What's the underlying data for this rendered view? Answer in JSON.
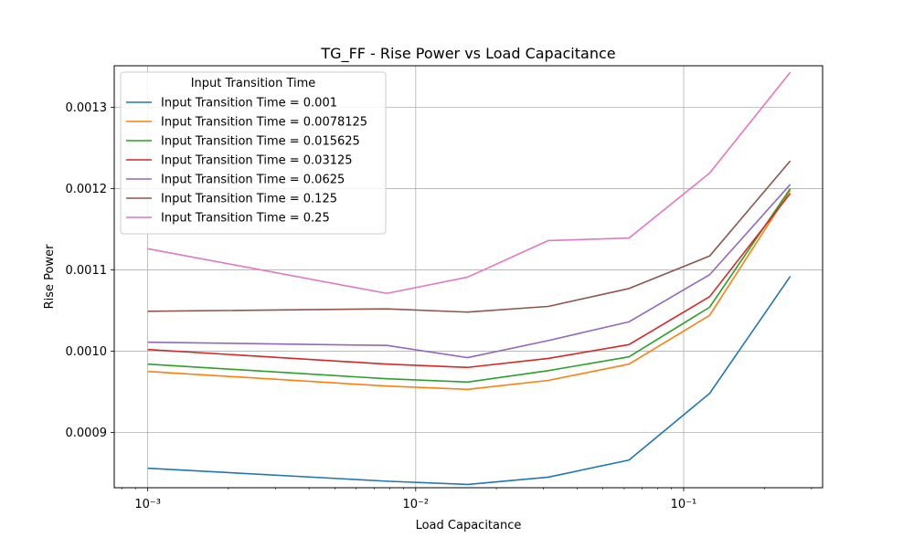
{
  "chart_data": {
    "type": "line",
    "title": "TG_FF - Rise Power vs Load Capacitance",
    "xlabel": "Load Capacitance",
    "ylabel": "Rise Power",
    "xscale": "log",
    "xlim": [
      0.00075,
      0.33
    ],
    "ylim": [
      0.000832,
      0.001351
    ],
    "x": [
      0.001,
      0.0078125,
      0.015625,
      0.03125,
      0.0625,
      0.125,
      0.25
    ],
    "x_ticks": [
      {
        "value": 0.001,
        "label": "10⁻³"
      },
      {
        "value": 0.01,
        "label": "10⁻²"
      },
      {
        "value": 0.1,
        "label": "10⁻¹"
      }
    ],
    "y_ticks": [
      {
        "value": 0.0009,
        "label": "0.0009"
      },
      {
        "value": 0.001,
        "label": "0.0010"
      },
      {
        "value": 0.0011,
        "label": "0.0011"
      },
      {
        "value": 0.0012,
        "label": "0.0012"
      },
      {
        "value": 0.0013,
        "label": "0.0013"
      }
    ],
    "grid": true,
    "legend": {
      "title": "Input Transition Time",
      "placement": "top-left"
    },
    "series": [
      {
        "name": "Input Transition Time = 0.001",
        "color": "#1f77b4",
        "values": [
          0.000856,
          0.00084,
          0.000836,
          0.000845,
          0.000866,
          0.000948,
          0.001092
        ]
      },
      {
        "name": "Input Transition Time = 0.0078125",
        "color": "#ff7f0e",
        "values": [
          0.000975,
          0.000957,
          0.000953,
          0.000964,
          0.000984,
          0.001044,
          0.001198
        ]
      },
      {
        "name": "Input Transition Time = 0.015625",
        "color": "#2ca02c",
        "values": [
          0.000984,
          0.000966,
          0.000962,
          0.000976,
          0.000993,
          0.001054,
          0.0012
        ]
      },
      {
        "name": "Input Transition Time = 0.03125",
        "color": "#d62728",
        "values": [
          0.001002,
          0.000984,
          0.00098,
          0.000991,
          0.001008,
          0.001067,
          0.001194
        ]
      },
      {
        "name": "Input Transition Time = 0.0625",
        "color": "#9467bd",
        "values": [
          0.001011,
          0.001007,
          0.000992,
          0.001013,
          0.001036,
          0.001094,
          0.001205
        ]
      },
      {
        "name": "Input Transition Time = 0.125",
        "color": "#8c564b",
        "values": [
          0.001049,
          0.001052,
          0.001048,
          0.001055,
          0.001077,
          0.001117,
          0.001234
        ]
      },
      {
        "name": "Input Transition Time = 0.25",
        "color": "#e377c2",
        "values": [
          0.001126,
          0.001071,
          0.001091,
          0.001136,
          0.001139,
          0.001219,
          0.001343
        ]
      }
    ]
  }
}
